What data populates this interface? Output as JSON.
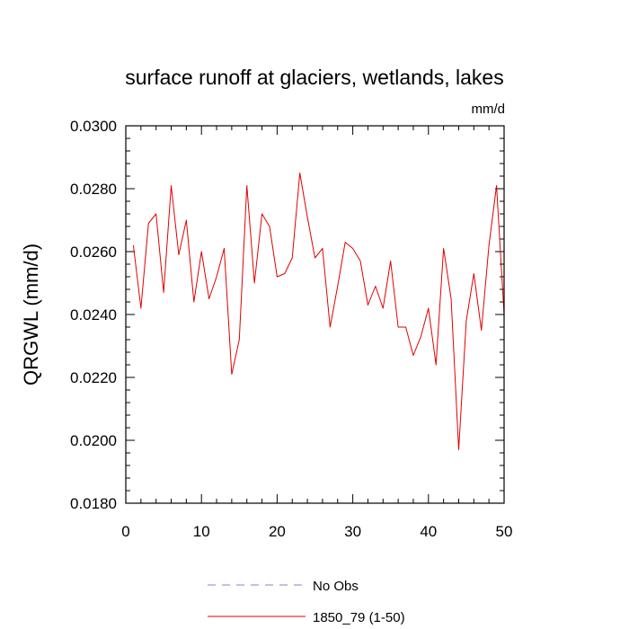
{
  "chart_data": {
    "type": "line",
    "title": "surface runoff at glaciers, wetlands, lakes",
    "units": "mm/d",
    "ylabel": "QRGWL  (mm/d)",
    "xlabel": "",
    "xlim": [
      0,
      50
    ],
    "ylim": [
      0.018,
      0.03
    ],
    "xticks": [
      0,
      10,
      20,
      30,
      40,
      50
    ],
    "xtick_labels": [
      "0",
      "10",
      "20",
      "30",
      "40",
      "50"
    ],
    "yticks": [
      0.018,
      0.02,
      0.022,
      0.024,
      0.026,
      0.028,
      0.03
    ],
    "ytick_labels": [
      "0.0180",
      "0.0200",
      "0.0220",
      "0.0240",
      "0.0260",
      "0.0280",
      "0.0300"
    ],
    "grid": false,
    "legend_position": "bottom",
    "series": [
      {
        "name": "No Obs",
        "style": "dashed",
        "color": "#8080e0",
        "x": [],
        "values": []
      },
      {
        "name": "1850_79 (1-50)",
        "style": "solid",
        "color": "#e00000",
        "x": [
          1,
          2,
          3,
          4,
          5,
          6,
          7,
          8,
          9,
          10,
          11,
          12,
          13,
          14,
          15,
          16,
          17,
          18,
          19,
          20,
          21,
          22,
          23,
          24,
          25,
          26,
          27,
          28,
          29,
          30,
          31,
          32,
          33,
          34,
          35,
          36,
          37,
          38,
          39,
          40,
          41,
          42,
          43,
          44,
          45,
          46,
          47,
          48,
          49,
          50
        ],
        "values": [
          0.0262,
          0.0242,
          0.0269,
          0.0272,
          0.0247,
          0.0281,
          0.0259,
          0.027,
          0.0244,
          0.026,
          0.0245,
          0.0252,
          0.0261,
          0.0221,
          0.0232,
          0.0281,
          0.025,
          0.0272,
          0.0268,
          0.0252,
          0.0253,
          0.0258,
          0.0285,
          0.0271,
          0.0258,
          0.0261,
          0.0236,
          0.0249,
          0.0263,
          0.0261,
          0.0257,
          0.0243,
          0.0249,
          0.0242,
          0.0257,
          0.0236,
          0.0236,
          0.0227,
          0.0233,
          0.0242,
          0.0224,
          0.0261,
          0.0245,
          0.0197,
          0.0238,
          0.0253,
          0.0235,
          0.0262,
          0.0281,
          0.024
        ]
      }
    ]
  }
}
